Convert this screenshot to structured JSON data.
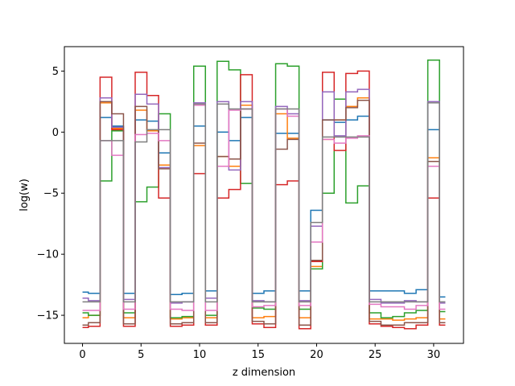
{
  "chart_data": {
    "type": "line",
    "step": "mid",
    "title": "",
    "xlabel": "z dimension",
    "ylabel": "log(w)",
    "xlim": [
      -1.55,
      32.55
    ],
    "ylim": [
      -17.3,
      7.0
    ],
    "xticks": [
      0,
      5,
      10,
      15,
      20,
      25,
      30
    ],
    "yticks": [
      5,
      0,
      -5,
      -10,
      -15
    ],
    "ytick_labels": [
      "5",
      "0",
      "−5",
      "−10",
      "−15"
    ],
    "grid": false,
    "legend": "none",
    "x": [
      0,
      1,
      2,
      3,
      4,
      5,
      6,
      7,
      8,
      9,
      10,
      11,
      12,
      13,
      14,
      15,
      16,
      17,
      18,
      19,
      20,
      21,
      22,
      23,
      24,
      25,
      26,
      27,
      28,
      29,
      30,
      31
    ],
    "series": [
      {
        "color": "#1f77b4",
        "values": [
          -13.1,
          -13.2,
          1.2,
          0.5,
          -13.2,
          1.0,
          0.9,
          -1.7,
          -13.3,
          -13.2,
          0.5,
          -13.0,
          0.0,
          -0.7,
          1.2,
          -13.2,
          -13.0,
          -0.1,
          -0.1,
          -13.0,
          -6.4,
          1.0,
          0.8,
          1.0,
          1.3,
          -13.0,
          -13.0,
          -13.0,
          -13.2,
          -12.9,
          0.2,
          -13.5
        ]
      },
      {
        "color": "#ff7f0e",
        "values": [
          -15.2,
          -15.0,
          2.4,
          0.3,
          -15.2,
          1.8,
          0.1,
          -2.7,
          -15.3,
          -15.2,
          -1.1,
          -15.2,
          -2.0,
          -2.8,
          2.2,
          -15.2,
          -15.1,
          1.5,
          -0.5,
          -15.2,
          -11.0,
          -0.6,
          1.0,
          2.1,
          2.8,
          -15.3,
          -15.3,
          -15.4,
          -15.3,
          -15.2,
          -2.1,
          -15.3
        ]
      },
      {
        "color": "#2ca02c",
        "values": [
          -14.8,
          -15.0,
          -4.0,
          0.1,
          -14.8,
          -5.7,
          -4.5,
          1.5,
          -15.2,
          -15.1,
          5.4,
          -15.0,
          5.8,
          5.1,
          -4.2,
          -14.4,
          -14.5,
          5.6,
          5.4,
          -14.5,
          -11.2,
          -5.0,
          2.7,
          -5.8,
          -4.4,
          -14.8,
          -15.2,
          -15.1,
          -14.8,
          -14.6,
          5.9,
          -14.7
        ]
      },
      {
        "color": "#d62728",
        "values": [
          -16.0,
          -15.9,
          4.5,
          0.2,
          -15.9,
          4.9,
          3.0,
          -5.4,
          -15.9,
          -15.8,
          -3.4,
          -15.8,
          -5.4,
          -4.7,
          4.7,
          -15.7,
          -16.0,
          -4.3,
          -4.0,
          -16.1,
          -10.6,
          4.9,
          -1.5,
          4.8,
          5.0,
          -15.7,
          -15.9,
          -16.0,
          -16.1,
          -15.8,
          -5.4,
          -15.8
        ]
      },
      {
        "color": "#9467bd",
        "values": [
          -13.6,
          -13.8,
          2.8,
          0.4,
          -13.7,
          3.1,
          2.3,
          -2.9,
          -14.0,
          -13.9,
          2.4,
          -13.6,
          2.5,
          -3.1,
          2.5,
          -13.8,
          -13.9,
          2.1,
          1.5,
          -13.8,
          -7.7,
          3.3,
          -0.3,
          3.3,
          3.5,
          -13.7,
          -14.0,
          -14.0,
          -13.8,
          -13.9,
          2.5,
          -14.0
        ]
      },
      {
        "color": "#8c564b",
        "values": [
          -15.8,
          -15.6,
          2.5,
          1.5,
          -15.7,
          2.1,
          0.2,
          -3.0,
          -15.7,
          -15.6,
          -0.9,
          -15.6,
          -2.0,
          -2.2,
          1.9,
          -15.5,
          -15.7,
          -1.4,
          -0.6,
          -15.8,
          -10.5,
          1.0,
          1.0,
          2.0,
          2.6,
          -15.5,
          -15.8,
          -15.8,
          -15.6,
          -15.6,
          -2.4,
          -15.6
        ]
      },
      {
        "color": "#e377c2",
        "values": [
          -14.6,
          -14.6,
          -0.7,
          -1.9,
          -14.5,
          -0.2,
          -0.1,
          -0.7,
          -14.5,
          -14.6,
          2.2,
          -14.6,
          -2.8,
          1.8,
          1.9,
          -14.3,
          -14.2,
          1.9,
          1.3,
          -14.2,
          -9.0,
          -0.6,
          -0.9,
          -0.5,
          -0.3,
          -14.1,
          -14.3,
          -14.3,
          -14.5,
          -14.2,
          -2.8,
          -14.5
        ]
      },
      {
        "color": "#7f7f7f",
        "values": [
          -13.9,
          -13.9,
          -0.7,
          -0.7,
          -13.9,
          -0.8,
          0.2,
          0.2,
          -13.9,
          -13.9,
          2.3,
          -13.9,
          2.3,
          1.9,
          1.9,
          -13.9,
          -13.9,
          1.9,
          1.9,
          -13.9,
          -7.4,
          -0.4,
          -0.4,
          -0.4,
          -0.4,
          -13.9,
          -13.9,
          -13.9,
          -13.9,
          -13.9,
          2.4,
          -13.9
        ]
      }
    ]
  }
}
